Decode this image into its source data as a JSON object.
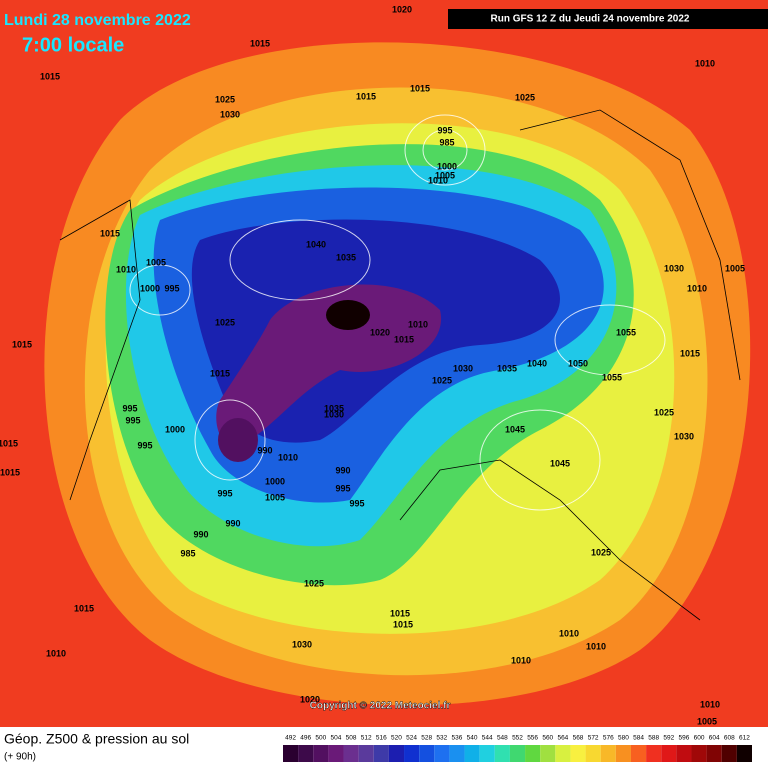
{
  "header": {
    "date": "Lundi 28 novembre 2022",
    "time": "7:00 locale",
    "run": "Run GFS 12 Z du Jeudi 24 novembre 2022"
  },
  "footer": {
    "title": "Géop. Z500 & pression au sol",
    "lead": "(+ 90h)",
    "copyright": "Copyright © 2022 Meteociel.fr"
  },
  "colorbar": {
    "values": [
      492,
      496,
      500,
      504,
      508,
      512,
      516,
      520,
      524,
      528,
      532,
      536,
      540,
      544,
      548,
      552,
      556,
      560,
      564,
      568,
      572,
      576,
      580,
      584,
      588,
      592,
      596,
      600,
      604,
      608,
      612
    ],
    "colors": [
      "#2a0030",
      "#3d0a4a",
      "#521060",
      "#6a1a78",
      "#6b2f8f",
      "#5a3a9c",
      "#3e3aa8",
      "#1c1eb0",
      "#1030d0",
      "#1450e0",
      "#1e70f0",
      "#1a90f0",
      "#10b0e8",
      "#20d0e0",
      "#30e0b0",
      "#40d870",
      "#60d840",
      "#a0e040",
      "#d8f040",
      "#f8f040",
      "#f8d830",
      "#f8b828",
      "#f89020",
      "#f86020",
      "#f03020",
      "#e01818",
      "#c00c10",
      "#a00808",
      "#800404",
      "#500000",
      "#100000"
    ]
  },
  "isobar_labels": [
    1020,
    1015,
    1015,
    1025,
    1030,
    1015,
    1015,
    1025,
    1010,
    995,
    985,
    1000,
    1005,
    1010,
    1015,
    1010,
    1005,
    1000,
    995,
    1040,
    1035,
    1025,
    1020,
    1010,
    1015,
    1030,
    1005,
    1010,
    1055,
    1015,
    1015,
    1025,
    1030,
    1035,
    1040,
    1050,
    1055,
    1015,
    995,
    995,
    1000,
    995,
    990,
    1010,
    1035,
    1030,
    1045,
    1025,
    1030,
    1045,
    990,
    995,
    1000,
    1005,
    995,
    995,
    990,
    990,
    985,
    1025,
    1025,
    1015,
    1015,
    1015,
    1010,
    1030,
    1010,
    1010,
    1010,
    1015,
    1015,
    1020,
    1010,
    1005
  ]
}
